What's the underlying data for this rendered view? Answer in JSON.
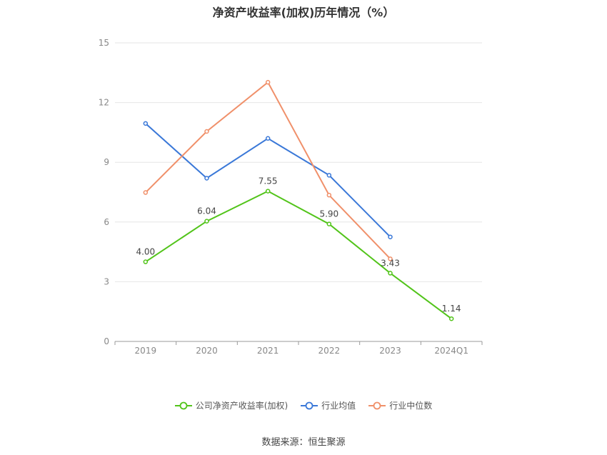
{
  "chart_data": {
    "type": "line",
    "title": "净资产收益率(加权)历年情况（%）",
    "categories": [
      "2019",
      "2020",
      "2021",
      "2022",
      "2023",
      "2024Q1"
    ],
    "ylim": [
      0,
      15
    ],
    "yticks": [
      0,
      3,
      6,
      9,
      12,
      15
    ],
    "grid": true,
    "legend_position": "bottom",
    "series": [
      {
        "name": "公司净资产收益率(加权)",
        "color": "#52c41a",
        "values": [
          4.0,
          6.04,
          7.55,
          5.9,
          3.43,
          1.14
        ],
        "labels": [
          "4.00",
          "6.04",
          "7.55",
          "5.90",
          "3.43",
          "1.14"
        ]
      },
      {
        "name": "行业均值",
        "color": "#3a78d8",
        "values": [
          10.95,
          8.2,
          10.2,
          8.35,
          5.25,
          null
        ]
      },
      {
        "name": "行业中位数",
        "color": "#f0906a",
        "values": [
          7.48,
          10.55,
          13.02,
          7.35,
          4.15,
          null
        ]
      }
    ]
  },
  "source": "数据来源：恒生聚源"
}
